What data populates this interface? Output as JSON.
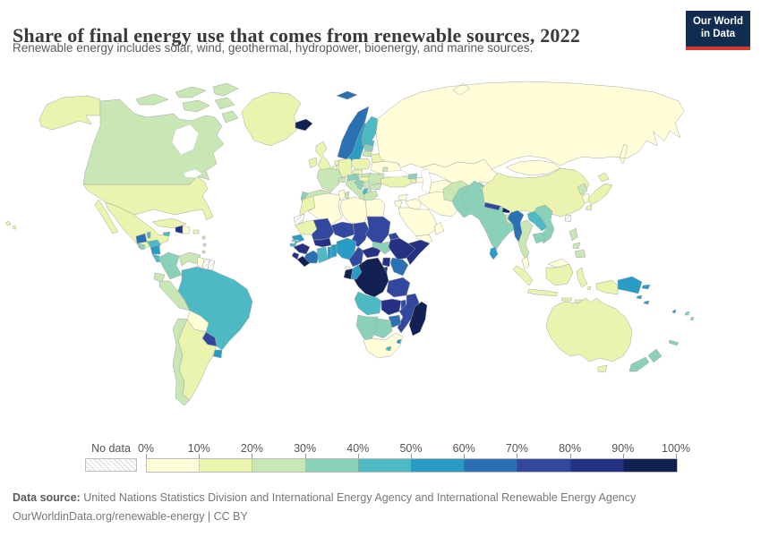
{
  "header": {
    "title": "Share of final energy use that comes from renewable sources, 2022",
    "subtitle": "Renewable energy includes solar, wind, geothermal, hydropower, bioenergy, and marine sources.",
    "logo": {
      "line1": "Our World",
      "line2": "in Data",
      "bg_color": "#102d50",
      "accent_color": "#d53a2b"
    }
  },
  "footer": {
    "source_label": "Data source:",
    "source_text": " United Nations Statistics Division and International Energy Agency and International Renewable Energy Agency",
    "note": "OurWorldinData.org/renewable-energy | CC BY"
  },
  "chart_data": {
    "type": "heatmap",
    "subtype": "choropleth-world-map",
    "year": "2022",
    "unit": "%",
    "legend": {
      "no_data_label": "No data",
      "tick_labels": [
        "0%",
        "10%",
        "20%",
        "30%",
        "40%",
        "50%",
        "60%",
        "70%",
        "80%",
        "90%",
        "100%"
      ],
      "position": "bottom"
    },
    "bins": [
      {
        "range": "0-10%",
        "color": "#fffed9"
      },
      {
        "range": "10-20%",
        "color": "#eaf4af"
      },
      {
        "range": "20-30%",
        "color": "#c8e7b4"
      },
      {
        "range": "30-40%",
        "color": "#8bd1b9"
      },
      {
        "range": "40-50%",
        "color": "#4cb9c3"
      },
      {
        "range": "50-60%",
        "color": "#299cc6"
      },
      {
        "range": "60-70%",
        "color": "#2b70b2"
      },
      {
        "range": "70-80%",
        "color": "#32479e"
      },
      {
        "range": "80-90%",
        "color": "#253183"
      },
      {
        "range": "90-100%",
        "color": "#122052"
      }
    ],
    "border_color": "#a6a6a6",
    "regions": {
      "usa": 2,
      "canada": 3,
      "greenland": 2,
      "mexico": 2,
      "guatemala": 7,
      "belize": 5,
      "honduras": 5,
      "el-salvador": 4,
      "nicaragua": 6,
      "costa-rica": 5,
      "panama": 4,
      "cuba": 2,
      "jamaica": 5,
      "haiti": 9,
      "dominican-republic": 1,
      "puerto-rico": 2,
      "caribbean-islands": 3,
      "colombia": 4,
      "venezuela": 3,
      "guyana": 1,
      "suriname": 0,
      "french-guiana": 0,
      "brazil": 5,
      "ecuador": 3,
      "peru": 3,
      "bolivia": 1,
      "paraguay": 8,
      "uruguay": 6,
      "argentina": 2,
      "chile": 3,
      "iceland": 10,
      "norway": 7,
      "sweden": 6,
      "finland": 5,
      "denmark": 5,
      "estonia": 5,
      "latvia": 4,
      "lithuania": 3,
      "uk": 2,
      "ireland": 2,
      "netherlands": 2,
      "belgium": 2,
      "germany": 2,
      "poland": 2,
      "belarus": 2,
      "ukraine": 1,
      "moldova": 3,
      "france": 3,
      "spain": 3,
      "portugal": 4,
      "italy": 3,
      "switzerland": 3,
      "austria": 4,
      "czechia": 2,
      "slovakia": 3,
      "hungary": 2,
      "romania": 3,
      "serbia": 3,
      "croatia": 4,
      "bosnia": 4,
      "montenegro-albania": 5,
      "north-macedonia": 3,
      "bulgaria": 3,
      "greece": 3,
      "turkey": 2,
      "russia": 1,
      "kazakhstan": 1,
      "central-asia": 1,
      "kyrgyzstan": 4,
      "tajikistan": 5,
      "georgia": 4,
      "azerbaijan": 1,
      "armenia": 2,
      "iran": 1,
      "iraq": 1,
      "syria": 1,
      "jordan-israel": 1,
      "saudi-arabia": 1,
      "yemen": 1,
      "oman": 1,
      "afghanistan": 3,
      "pakistan": 4,
      "india": 4,
      "nepal": 8,
      "bhutan": 10,
      "bangladesh": 3,
      "sri-lanka": 6,
      "china": 2,
      "mongolia": 1,
      "myanmar": 7,
      "thailand": 3,
      "laos": 5,
      "vietnam": 4,
      "cambodia": 4,
      "malaysia": 1,
      "indonesia": 2,
      "papua-new-guinea": 6,
      "philippines": 3,
      "taiwan": 0,
      "north-korea": 3,
      "south-korea": 1,
      "japan": 2,
      "australia": 2,
      "new-zealand": 4,
      "solomon-islands": 6,
      "vanuatu": 6,
      "fiji": 4,
      "new-caledonia": 4,
      "morocco": 2,
      "western-sahara": 0,
      "algeria": 1,
      "tunisia": 1,
      "libya": 1,
      "egypt": 1,
      "mauritania": 2,
      "mali": 8,
      "niger": 8,
      "chad": 8,
      "sudan": 8,
      "eritrea": 8,
      "djibouti": 5,
      "senegal": 6,
      "gambia": 4,
      "guinea-bissau": 5,
      "guinea": 9,
      "sierra-leone": 9,
      "liberia": 10,
      "cote-divoire": 7,
      "burkina-faso": 9,
      "ghana": 5,
      "togo": 6,
      "benin": 6,
      "nigeria": 6,
      "cameroon": 8,
      "central-african-republic": 9,
      "south-sudan": 4,
      "ethiopia": 9,
      "somalia": 9,
      "kenya": 7,
      "uganda": 9,
      "rwanda-burundi": 9,
      "drc": 10,
      "gabon": 10,
      "congo": 6,
      "equatorial-guinea": 1,
      "tanzania": 8,
      "angola": 5,
      "zambia": 9,
      "malawi": 8,
      "mozambique": 8,
      "zimbabwe": 7,
      "namibia": 4,
      "botswana": 4,
      "south-africa": 1,
      "lesotho": 5,
      "eswatini": 6,
      "madagascar": 10
    }
  }
}
